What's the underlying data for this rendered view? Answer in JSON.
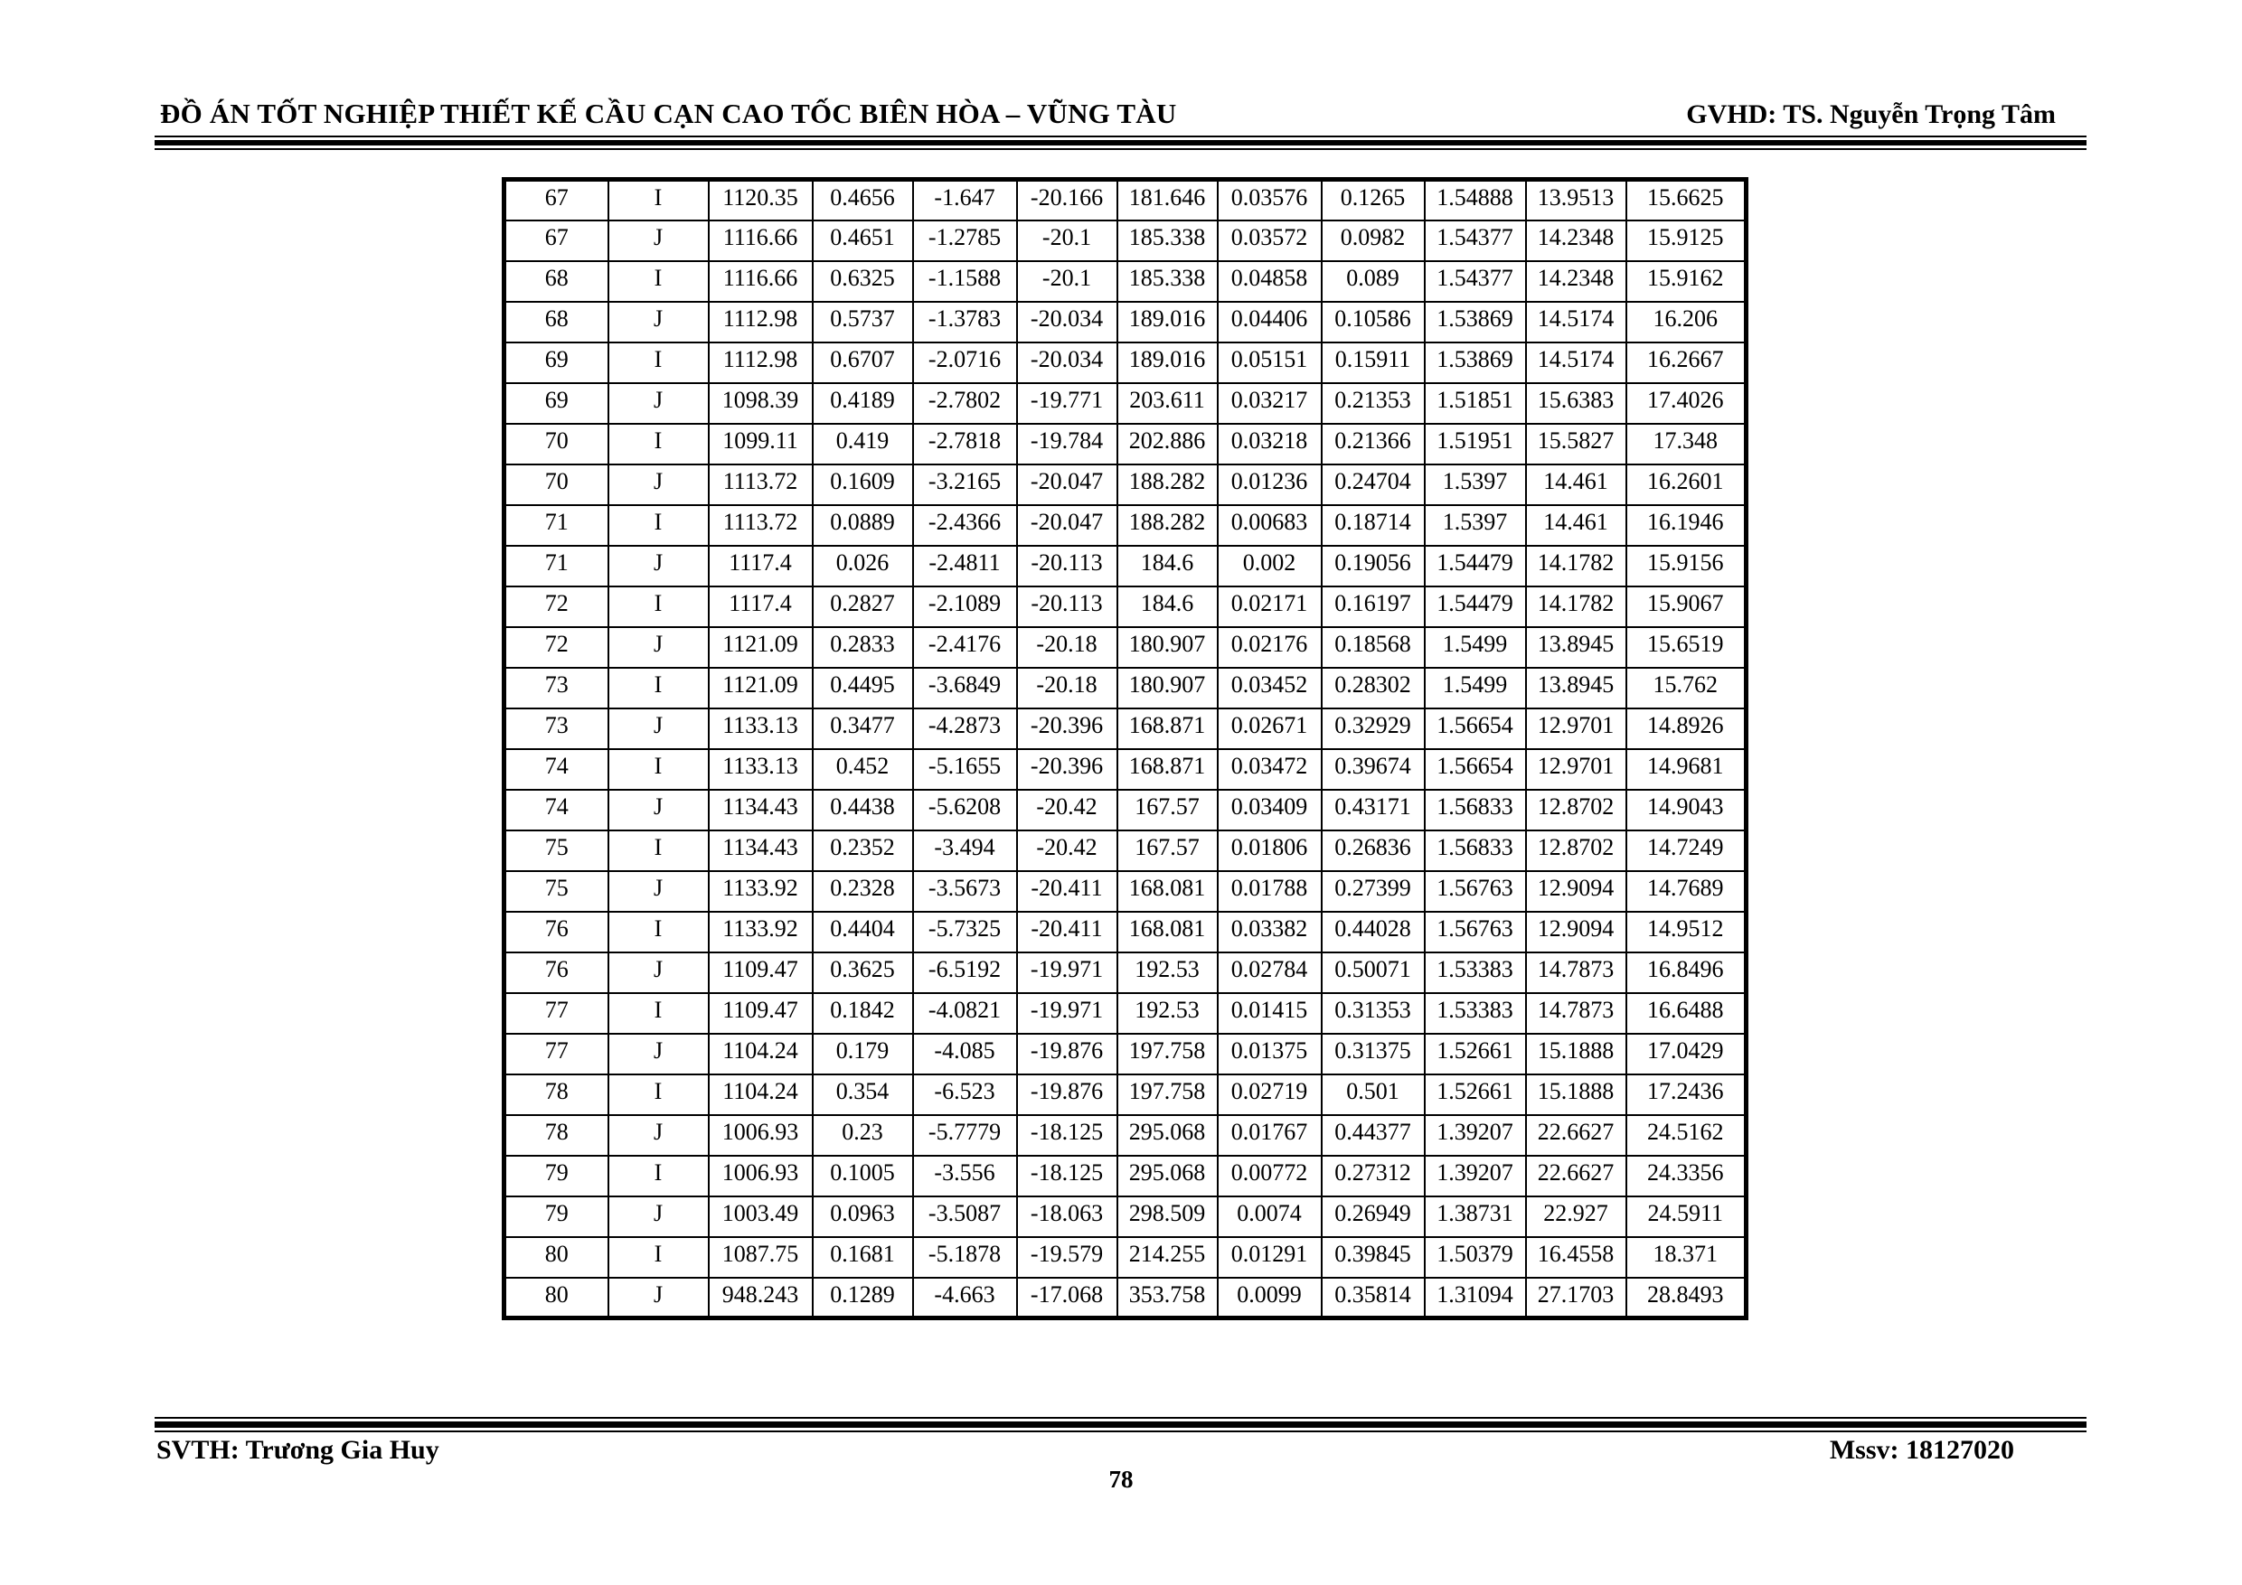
{
  "header": {
    "title": "ĐỒ ÁN TỐT NGHIỆP THIẾT KẾ CẦU CẠN CAO TỐC BIÊN HÒA – VŨNG TÀU",
    "supervisor": "GVHD: TS. Nguyễn Trọng Tâm"
  },
  "footer": {
    "student": "SVTH: Trương Gia Huy",
    "student_id": "Mssv: 18127020",
    "page_number": "78"
  },
  "table": {
    "rows": [
      [
        "67",
        "I",
        "1120.35",
        "0.4656",
        "-1.647",
        "-20.166",
        "181.646",
        "0.03576",
        "0.1265",
        "1.54888",
        "13.9513",
        "15.6625"
      ],
      [
        "67",
        "J",
        "1116.66",
        "0.4651",
        "-1.2785",
        "-20.1",
        "185.338",
        "0.03572",
        "0.0982",
        "1.54377",
        "14.2348",
        "15.9125"
      ],
      [
        "68",
        "I",
        "1116.66",
        "0.6325",
        "-1.1588",
        "-20.1",
        "185.338",
        "0.04858",
        "0.089",
        "1.54377",
        "14.2348",
        "15.9162"
      ],
      [
        "68",
        "J",
        "1112.98",
        "0.5737",
        "-1.3783",
        "-20.034",
        "189.016",
        "0.04406",
        "0.10586",
        "1.53869",
        "14.5174",
        "16.206"
      ],
      [
        "69",
        "I",
        "1112.98",
        "0.6707",
        "-2.0716",
        "-20.034",
        "189.016",
        "0.05151",
        "0.15911",
        "1.53869",
        "14.5174",
        "16.2667"
      ],
      [
        "69",
        "J",
        "1098.39",
        "0.4189",
        "-2.7802",
        "-19.771",
        "203.611",
        "0.03217",
        "0.21353",
        "1.51851",
        "15.6383",
        "17.4026"
      ],
      [
        "70",
        "I",
        "1099.11",
        "0.419",
        "-2.7818",
        "-19.784",
        "202.886",
        "0.03218",
        "0.21366",
        "1.51951",
        "15.5827",
        "17.348"
      ],
      [
        "70",
        "J",
        "1113.72",
        "0.1609",
        "-3.2165",
        "-20.047",
        "188.282",
        "0.01236",
        "0.24704",
        "1.5397",
        "14.461",
        "16.2601"
      ],
      [
        "71",
        "I",
        "1113.72",
        "0.0889",
        "-2.4366",
        "-20.047",
        "188.282",
        "0.00683",
        "0.18714",
        "1.5397",
        "14.461",
        "16.1946"
      ],
      [
        "71",
        "J",
        "1117.4",
        "0.026",
        "-2.4811",
        "-20.113",
        "184.6",
        "0.002",
        "0.19056",
        "1.54479",
        "14.1782",
        "15.9156"
      ],
      [
        "72",
        "I",
        "1117.4",
        "0.2827",
        "-2.1089",
        "-20.113",
        "184.6",
        "0.02171",
        "0.16197",
        "1.54479",
        "14.1782",
        "15.9067"
      ],
      [
        "72",
        "J",
        "1121.09",
        "0.2833",
        "-2.4176",
        "-20.18",
        "180.907",
        "0.02176",
        "0.18568",
        "1.5499",
        "13.8945",
        "15.6519"
      ],
      [
        "73",
        "I",
        "1121.09",
        "0.4495",
        "-3.6849",
        "-20.18",
        "180.907",
        "0.03452",
        "0.28302",
        "1.5499",
        "13.8945",
        "15.762"
      ],
      [
        "73",
        "J",
        "1133.13",
        "0.3477",
        "-4.2873",
        "-20.396",
        "168.871",
        "0.02671",
        "0.32929",
        "1.56654",
        "12.9701",
        "14.8926"
      ],
      [
        "74",
        "I",
        "1133.13",
        "0.452",
        "-5.1655",
        "-20.396",
        "168.871",
        "0.03472",
        "0.39674",
        "1.56654",
        "12.9701",
        "14.9681"
      ],
      [
        "74",
        "J",
        "1134.43",
        "0.4438",
        "-5.6208",
        "-20.42",
        "167.57",
        "0.03409",
        "0.43171",
        "1.56833",
        "12.8702",
        "14.9043"
      ],
      [
        "75",
        "I",
        "1134.43",
        "0.2352",
        "-3.494",
        "-20.42",
        "167.57",
        "0.01806",
        "0.26836",
        "1.56833",
        "12.8702",
        "14.7249"
      ],
      [
        "75",
        "J",
        "1133.92",
        "0.2328",
        "-3.5673",
        "-20.411",
        "168.081",
        "0.01788",
        "0.27399",
        "1.56763",
        "12.9094",
        "14.7689"
      ],
      [
        "76",
        "I",
        "1133.92",
        "0.4404",
        "-5.7325",
        "-20.411",
        "168.081",
        "0.03382",
        "0.44028",
        "1.56763",
        "12.9094",
        "14.9512"
      ],
      [
        "76",
        "J",
        "1109.47",
        "0.3625",
        "-6.5192",
        "-19.971",
        "192.53",
        "0.02784",
        "0.50071",
        "1.53383",
        "14.7873",
        "16.8496"
      ],
      [
        "77",
        "I",
        "1109.47",
        "0.1842",
        "-4.0821",
        "-19.971",
        "192.53",
        "0.01415",
        "0.31353",
        "1.53383",
        "14.7873",
        "16.6488"
      ],
      [
        "77",
        "J",
        "1104.24",
        "0.179",
        "-4.085",
        "-19.876",
        "197.758",
        "0.01375",
        "0.31375",
        "1.52661",
        "15.1888",
        "17.0429"
      ],
      [
        "78",
        "I",
        "1104.24",
        "0.354",
        "-6.523",
        "-19.876",
        "197.758",
        "0.02719",
        "0.501",
        "1.52661",
        "15.1888",
        "17.2436"
      ],
      [
        "78",
        "J",
        "1006.93",
        "0.23",
        "-5.7779",
        "-18.125",
        "295.068",
        "0.01767",
        "0.44377",
        "1.39207",
        "22.6627",
        "24.5162"
      ],
      [
        "79",
        "I",
        "1006.93",
        "0.1005",
        "-3.556",
        "-18.125",
        "295.068",
        "0.00772",
        "0.27312",
        "1.39207",
        "22.6627",
        "24.3356"
      ],
      [
        "79",
        "J",
        "1003.49",
        "0.0963",
        "-3.5087",
        "-18.063",
        "298.509",
        "0.0074",
        "0.26949",
        "1.38731",
        "22.927",
        "24.5911"
      ],
      [
        "80",
        "I",
        "1087.75",
        "0.1681",
        "-5.1878",
        "-19.579",
        "214.255",
        "0.01291",
        "0.39845",
        "1.50379",
        "16.4558",
        "18.371"
      ],
      [
        "80",
        "J",
        "948.243",
        "0.1289",
        "-4.663",
        "-17.068",
        "353.758",
        "0.0099",
        "0.35814",
        "1.31094",
        "27.1703",
        "28.8493"
      ]
    ]
  }
}
